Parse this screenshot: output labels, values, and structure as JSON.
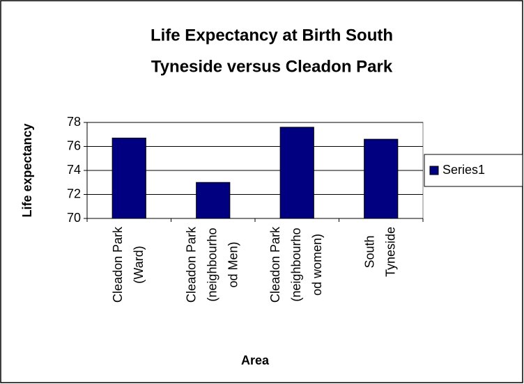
{
  "chart_data": {
    "type": "bar",
    "title": [
      "Life Expectancy at Birth South",
      "Tyneside versus Cleadon Park"
    ],
    "y_label": "Life expectancy",
    "x_label": "Area",
    "categories": [
      [
        "Cleadon Park",
        "(Ward)"
      ],
      [
        "Cleadon Park",
        "(neighbourho",
        "od Men)"
      ],
      [
        "Cleadon Park",
        "(neighbourho",
        "od women)"
      ],
      [
        "South",
        "Tyneside"
      ]
    ],
    "series": [
      {
        "name": "Series1",
        "color": "#000080",
        "values": [
          76.7,
          73.0,
          77.6,
          76.6
        ]
      }
    ],
    "ylim": [
      70,
      78
    ],
    "yticks": [
      70,
      72,
      74,
      76,
      78
    ],
    "grid": true,
    "legend": "right"
  }
}
